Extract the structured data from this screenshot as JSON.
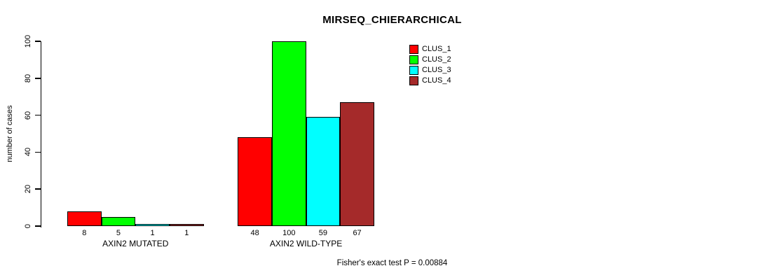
{
  "page": {
    "background": "#ffffff",
    "text_color": "#000000"
  },
  "chart_data": {
    "type": "bar",
    "title": "MIRSEQ_CHIERARCHICAL",
    "ylabel": "number of cases",
    "xlabel": "",
    "categories": [
      "AXIN2 MUTATED",
      "AXIN2 WILD-TYPE"
    ],
    "series": [
      {
        "name": "CLUS_1",
        "color": "#ff0000",
        "values": [
          8,
          48
        ]
      },
      {
        "name": "CLUS_2",
        "color": "#00ff00",
        "values": [
          5,
          100
        ]
      },
      {
        "name": "CLUS_3",
        "color": "#00ffff",
        "values": [
          1,
          59
        ]
      },
      {
        "name": "CLUS_4",
        "color": "#a52a2a",
        "values": [
          1,
          67
        ]
      }
    ],
    "ylim": [
      0,
      100
    ],
    "yticks": [
      0,
      20,
      40,
      60,
      80,
      100
    ],
    "grid": false,
    "legend_position": "top-right",
    "show_value_labels": true,
    "annotation": "Fisher's exact test P = 0.00884",
    "axis_color": "#000000",
    "bar_border_color": "#000000"
  }
}
